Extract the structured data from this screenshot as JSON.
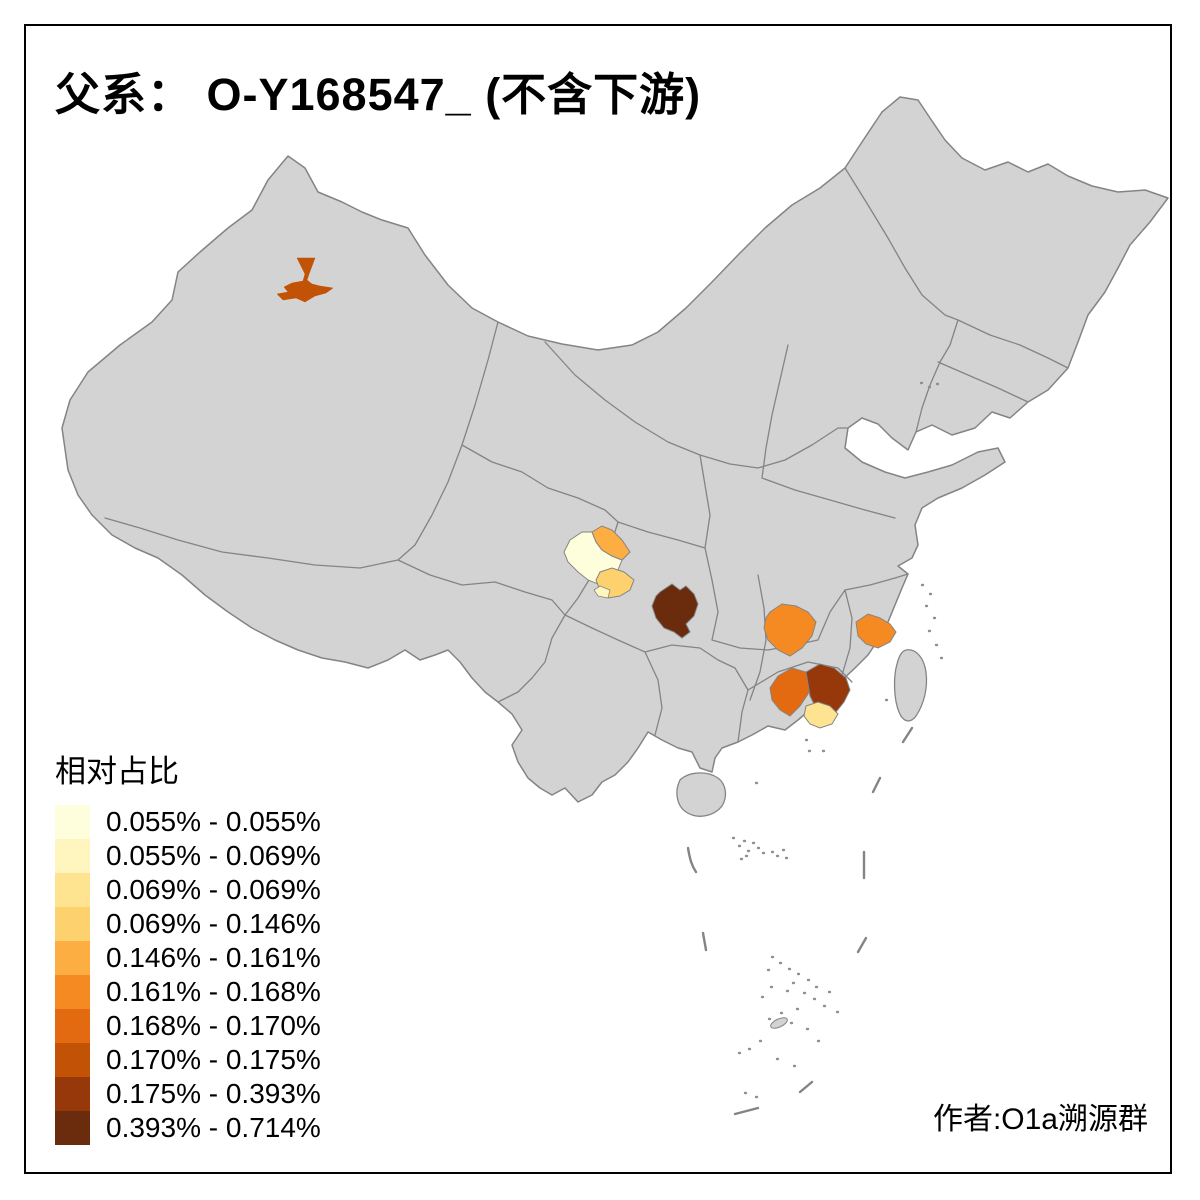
{
  "title": "父系： O-Y168547_ (不含下游)",
  "attribution": "作者:O1a溯源群",
  "legend": {
    "title": "相对占比",
    "items": [
      {
        "label": "0.055% - 0.055%",
        "color": "#FFFEDC"
      },
      {
        "label": "0.055% - 0.069%",
        "color": "#FFF5BE"
      },
      {
        "label": "0.069% - 0.069%",
        "color": "#FEE391"
      },
      {
        "label": "0.069% - 0.146%",
        "color": "#FDD26E"
      },
      {
        "label": "0.146% - 0.161%",
        "color": "#FCAE42"
      },
      {
        "label": "0.161% - 0.168%",
        "color": "#F68A22"
      },
      {
        "label": "0.168% - 0.170%",
        "color": "#E36A10"
      },
      {
        "label": "0.170% - 0.175%",
        "color": "#C25206"
      },
      {
        "label": "0.175% - 0.393%",
        "color": "#96380A"
      },
      {
        "label": "0.393% - 0.714%",
        "color": "#6B2B0D"
      }
    ]
  },
  "map": {
    "land_color": "#D3D3D3",
    "border_color": "#848484",
    "sea_color": "#FFFFFF",
    "regions": [
      {
        "name": "sichuan-center",
        "bin": "0.055% - 0.055%",
        "color": "#FFFEDC"
      },
      {
        "name": "sichuan-south-small",
        "bin": "0.055% - 0.069%",
        "color": "#FFF5BE"
      },
      {
        "name": "guangdong-south",
        "bin": "0.069% - 0.069%",
        "color": "#FEE391"
      },
      {
        "name": "sichuan-south",
        "bin": "0.069% - 0.146%",
        "color": "#FDD26E"
      },
      {
        "name": "sichuan-northeast",
        "bin": "0.146% - 0.161%",
        "color": "#FCAE42"
      },
      {
        "name": "jiangxi-west",
        "bin": "0.161% - 0.168%",
        "color": "#F68A22"
      },
      {
        "name": "fujian-coast",
        "bin": "0.161% - 0.168%",
        "color": "#F68A22"
      },
      {
        "name": "guangdong-west",
        "bin": "0.168% - 0.170%",
        "color": "#E36A10"
      },
      {
        "name": "xinjiang-north",
        "bin": "0.170% - 0.175%",
        "color": "#C25206"
      },
      {
        "name": "guangdong-east",
        "bin": "0.175% - 0.393%",
        "color": "#96380A"
      },
      {
        "name": "guizhou-north",
        "bin": "0.393% - 0.714%",
        "color": "#6B2B0D"
      }
    ]
  },
  "chart_data": {
    "type": "choropleth",
    "title": "父系： O-Y168547_ (不含下游)",
    "legend_title": "相对占比",
    "legend_position": "bottom-left",
    "bins": [
      "0.055% - 0.055%",
      "0.055% - 0.069%",
      "0.069% - 0.069%",
      "0.069% - 0.146%",
      "0.146% - 0.161%",
      "0.161% - 0.168%",
      "0.168% - 0.170%",
      "0.170% - 0.175%",
      "0.175% - 0.393%",
      "0.393% - 0.714%"
    ],
    "bin_colors": [
      "#FFFEDC",
      "#FFF5BE",
      "#FEE391",
      "#FDD26E",
      "#FCAE42",
      "#F68A22",
      "#E36A10",
      "#C25206",
      "#96380A",
      "#6B2B0D"
    ],
    "highlighted_regions": [
      {
        "location": "northern Xinjiang",
        "bin": "0.170% - 0.175%"
      },
      {
        "location": "central Sichuan",
        "bin": "0.055% - 0.055%"
      },
      {
        "location": "southern Sichuan",
        "bin": "0.069% - 0.146%"
      },
      {
        "location": "southern Sichuan (small)",
        "bin": "0.055% - 0.069%"
      },
      {
        "location": "northeastern Sichuan",
        "bin": "0.146% - 0.161%"
      },
      {
        "location": "northern Guizhou",
        "bin": "0.393% - 0.714%"
      },
      {
        "location": "western Jiangxi",
        "bin": "0.161% - 0.168%"
      },
      {
        "location": "coastal Fujian",
        "bin": "0.161% - 0.168%"
      },
      {
        "location": "central Guangdong (west)",
        "bin": "0.168% - 0.170%"
      },
      {
        "location": "central Guangdong (east)",
        "bin": "0.175% - 0.393%"
      },
      {
        "location": "southern Guangdong",
        "bin": "0.069% - 0.069%"
      }
    ]
  }
}
